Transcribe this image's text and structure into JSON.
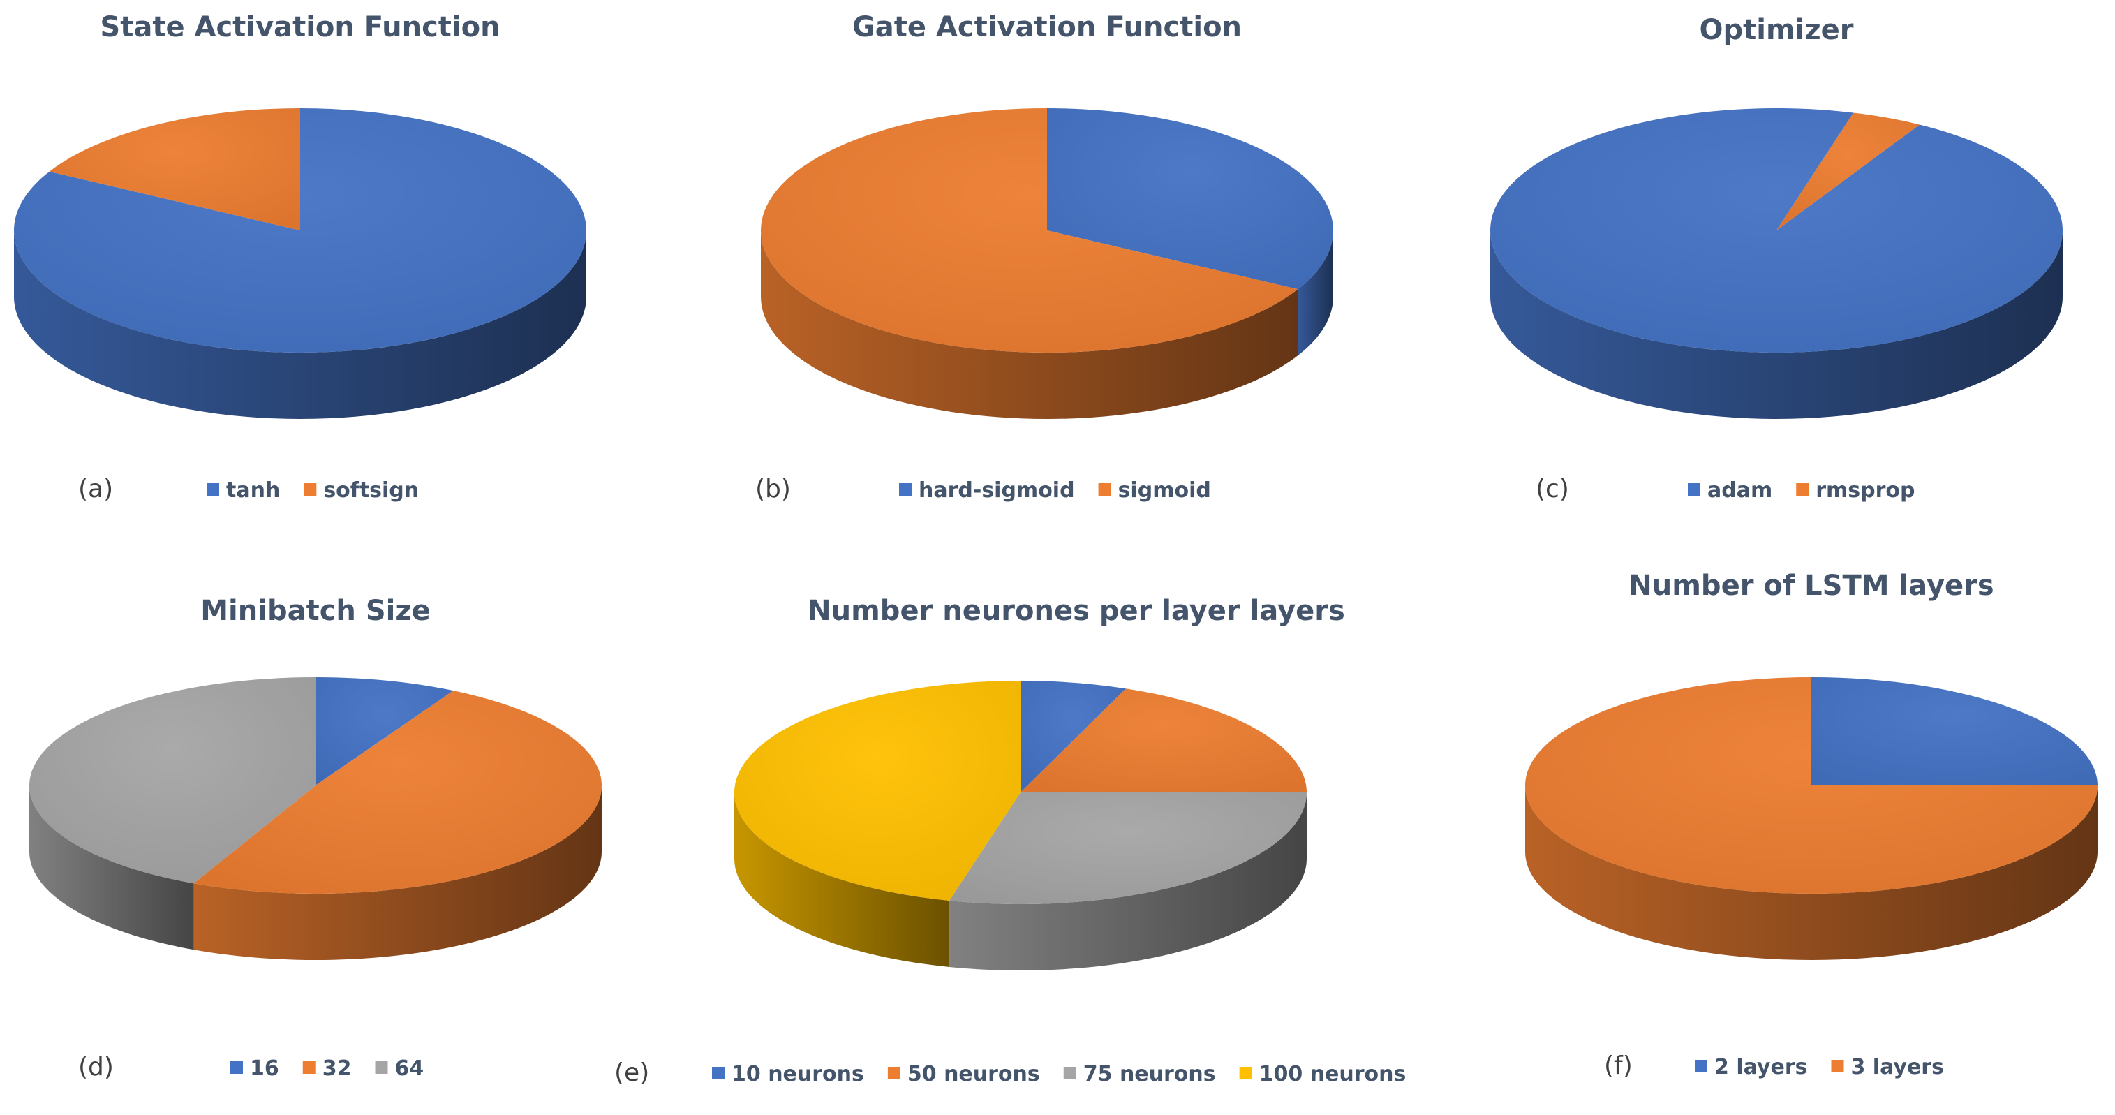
{
  "palette": {
    "blue": "#4472c4",
    "orange": "#ed7d31",
    "gray": "#a5a5a5",
    "yellow": "#ffc000",
    "title": "#44546a"
  },
  "chart_data": [
    {
      "type": "pie",
      "variant": "3d",
      "panel": "(a)",
      "title": "State Activation Function",
      "categories": [
        "tanh",
        "softsign"
      ],
      "values": [
        83,
        17
      ],
      "colors": [
        "#4472c4",
        "#ed7d31"
      ],
      "start_angle_deg": 0,
      "legend_position": "bottom"
    },
    {
      "type": "pie",
      "variant": "3d",
      "panel": "(b)",
      "title": "Gate Activation Function",
      "categories": [
        "hard-sigmoid",
        "sigmoid"
      ],
      "values": [
        33,
        67
      ],
      "colors": [
        "#4472c4",
        "#ed7d31"
      ],
      "start_angle_deg": 0,
      "legend_position": "bottom"
    },
    {
      "type": "pie",
      "variant": "3d",
      "panel": "(c)",
      "title": "Optimizer",
      "categories": [
        "adam",
        "rmsprop"
      ],
      "values": [
        96,
        4
      ],
      "colors": [
        "#4472c4",
        "#ed7d31"
      ],
      "start_angle_deg": 30,
      "legend_position": "bottom"
    },
    {
      "type": "pie",
      "variant": "3d",
      "panel": "(d)",
      "title": "Minibatch Size",
      "categories": [
        "16",
        "32",
        "64"
      ],
      "values": [
        8,
        49,
        43
      ],
      "colors": [
        "#4472c4",
        "#ed7d31",
        "#a5a5a5"
      ],
      "start_angle_deg": 0,
      "legend_position": "bottom"
    },
    {
      "type": "pie",
      "variant": "3d",
      "panel": "(e)",
      "title": "Number neurones per layer layers",
      "categories": [
        "10 neurons",
        "50 neurons",
        "75 neurons",
        "100 neurons"
      ],
      "values": [
        6,
        19,
        29,
        46
      ],
      "colors": [
        "#4472c4",
        "#ed7d31",
        "#a5a5a5",
        "#ffc000"
      ],
      "start_angle_deg": 0,
      "legend_position": "bottom"
    },
    {
      "type": "pie",
      "variant": "3d",
      "panel": "(f)",
      "title": "Number of LSTM layers",
      "categories": [
        "2 layers",
        "3 layers"
      ],
      "values": [
        25,
        75
      ],
      "colors": [
        "#4472c4",
        "#ed7d31"
      ],
      "start_angle_deg": 0,
      "legend_position": "bottom"
    }
  ]
}
